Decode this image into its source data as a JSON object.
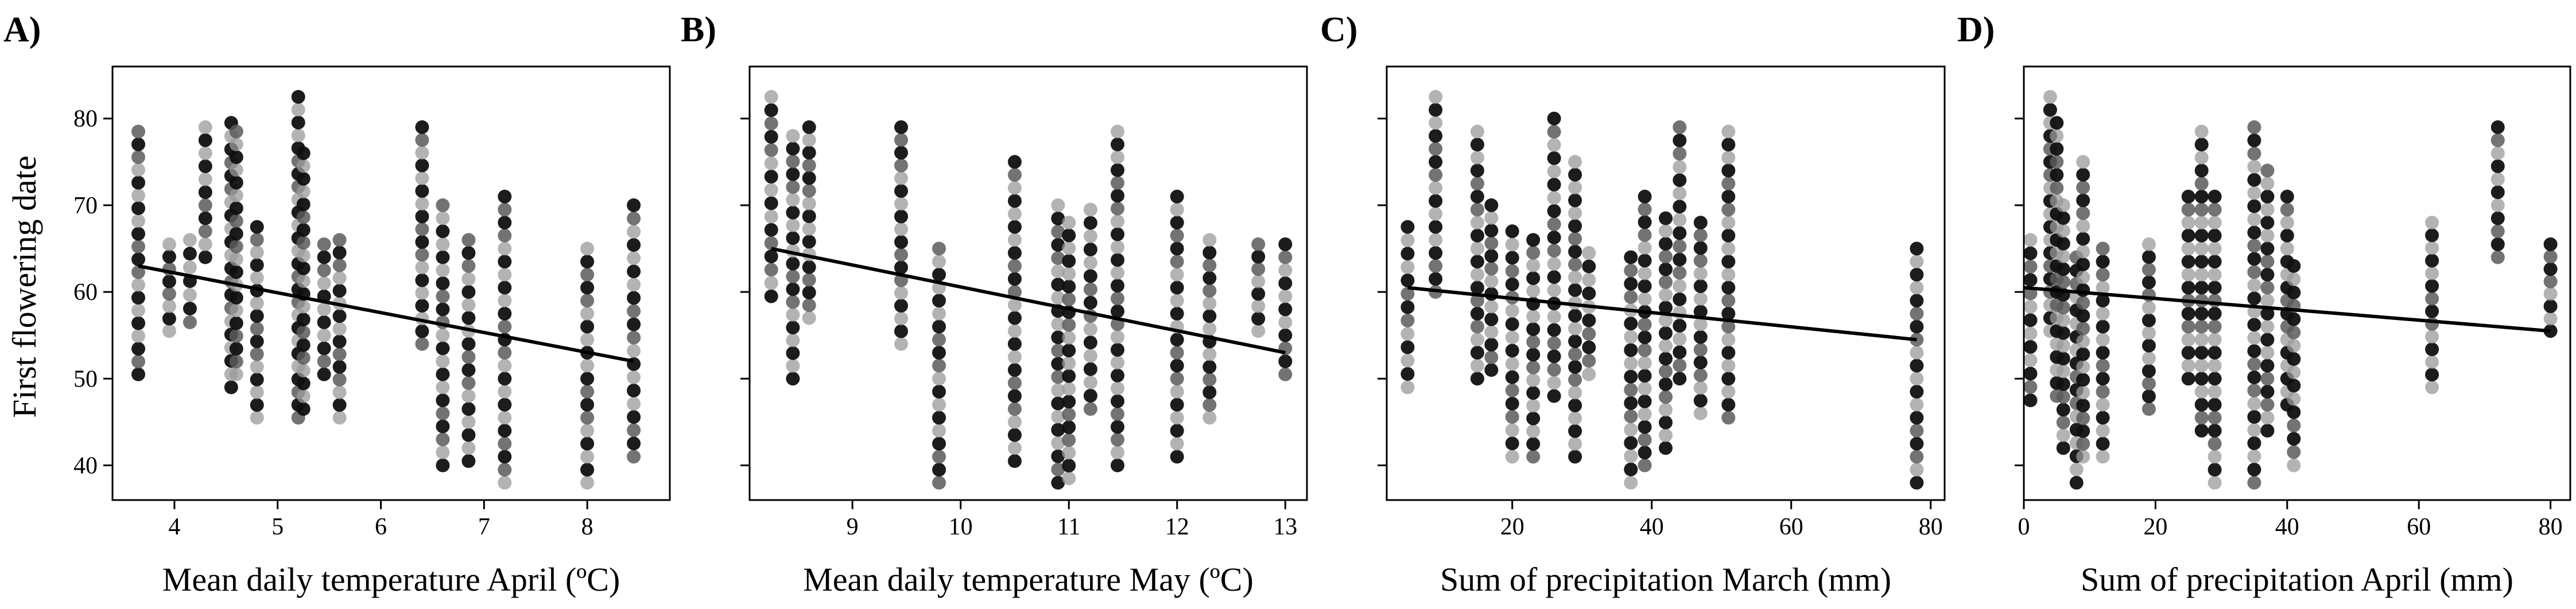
{
  "figure": {
    "ylabel": "First flowering date",
    "colors": {
      "ink": "#000000",
      "point_light": "#9a9a9a",
      "point_mid": "#5a5a5a",
      "point_dark": "#101010"
    }
  },
  "chart_data": [
    {
      "panel": "A)",
      "type": "scatter",
      "xlabel": "Mean daily temperature April (ºC)",
      "ylabel": "First flowering date",
      "xlim": [
        3.4,
        8.8
      ],
      "ylim": [
        36,
        86
      ],
      "xticks": [
        4,
        5,
        6,
        7,
        8
      ],
      "yticks": [
        40,
        50,
        60,
        70,
        80
      ],
      "trend": {
        "x": [
          3.65,
          8.45
        ],
        "y": [
          63.0,
          52.0
        ]
      },
      "columns": [
        {
          "x": 3.65,
          "min": 50.5,
          "max": 78.5
        },
        {
          "x": 3.95,
          "min": 55.5,
          "max": 65.5
        },
        {
          "x": 4.15,
          "min": 56.5,
          "max": 66.0
        },
        {
          "x": 4.3,
          "min": 64.0,
          "max": 79.0
        },
        {
          "x": 4.55,
          "min": 49.0,
          "max": 79.5
        },
        {
          "x": 4.6,
          "min": 50.5,
          "max": 78.5
        },
        {
          "x": 4.8,
          "min": 45.5,
          "max": 67.5
        },
        {
          "x": 5.2,
          "min": 45.5,
          "max": 82.5
        },
        {
          "x": 5.25,
          "min": 46.5,
          "max": 76.0
        },
        {
          "x": 5.45,
          "min": 50.5,
          "max": 65.5
        },
        {
          "x": 5.6,
          "min": 45.5,
          "max": 66.0
        },
        {
          "x": 6.4,
          "min": 54.0,
          "max": 79.0
        },
        {
          "x": 6.6,
          "min": 40.0,
          "max": 70.0
        },
        {
          "x": 6.85,
          "min": 40.5,
          "max": 66.0
        },
        {
          "x": 7.2,
          "min": 38.0,
          "max": 71.0
        },
        {
          "x": 8.0,
          "min": 38.0,
          "max": 65.0
        },
        {
          "x": 8.45,
          "min": 41.0,
          "max": 70.0
        }
      ]
    },
    {
      "panel": "B)",
      "type": "scatter",
      "xlabel": "Mean daily temperature May (ºC)",
      "ylabel": "First flowering date",
      "xlim": [
        8.05,
        13.2
      ],
      "ylim": [
        36,
        86
      ],
      "xticks": [
        9,
        10,
        11,
        12,
        13
      ],
      "yticks": [
        40,
        50,
        60,
        70,
        80
      ],
      "trend": {
        "x": [
          8.25,
          13.0
        ],
        "y": [
          65.0,
          53.0
        ]
      },
      "columns": [
        {
          "x": 8.25,
          "min": 59.5,
          "max": 82.5
        },
        {
          "x": 8.45,
          "min": 50.0,
          "max": 78.0
        },
        {
          "x": 8.6,
          "min": 57.0,
          "max": 79.0
        },
        {
          "x": 9.45,
          "min": 54.0,
          "max": 79.0
        },
        {
          "x": 9.8,
          "min": 38.0,
          "max": 65.0
        },
        {
          "x": 10.5,
          "min": 40.5,
          "max": 75.0
        },
        {
          "x": 10.9,
          "min": 38.0,
          "max": 70.0
        },
        {
          "x": 11.0,
          "min": 38.5,
          "max": 68.0
        },
        {
          "x": 11.2,
          "min": 46.5,
          "max": 69.5
        },
        {
          "x": 11.45,
          "min": 40.0,
          "max": 78.5
        },
        {
          "x": 12.0,
          "min": 41.0,
          "max": 71.0
        },
        {
          "x": 12.3,
          "min": 45.5,
          "max": 66.0
        },
        {
          "x": 12.75,
          "min": 55.5,
          "max": 65.5
        },
        {
          "x": 13.0,
          "min": 50.5,
          "max": 65.5
        }
      ]
    },
    {
      "panel": "C)",
      "type": "scatter",
      "xlabel": "Sum of precipitation March (mm)",
      "ylabel": "First flowering date",
      "xlim": [
        2,
        82
      ],
      "ylim": [
        36,
        86
      ],
      "xticks": [
        20,
        40,
        60,
        80
      ],
      "yticks": [
        40,
        50,
        60,
        70,
        80
      ],
      "trend": {
        "x": [
          5,
          78
        ],
        "y": [
          60.5,
          54.5
        ]
      },
      "columns": [
        {
          "x": 5,
          "min": 49.0,
          "max": 67.5
        },
        {
          "x": 9,
          "min": 60.0,
          "max": 82.5
        },
        {
          "x": 15,
          "min": 50.0,
          "max": 78.5
        },
        {
          "x": 17,
          "min": 51.0,
          "max": 70.0
        },
        {
          "x": 20,
          "min": 41.0,
          "max": 67.0
        },
        {
          "x": 23,
          "min": 41.0,
          "max": 66.0
        },
        {
          "x": 26,
          "min": 48.0,
          "max": 80.0
        },
        {
          "x": 29,
          "min": 41.0,
          "max": 75.0
        },
        {
          "x": 31,
          "min": 50.5,
          "max": 64.5
        },
        {
          "x": 37,
          "min": 38.0,
          "max": 64.0
        },
        {
          "x": 39,
          "min": 40.0,
          "max": 71.0
        },
        {
          "x": 42,
          "min": 42.0,
          "max": 68.5
        },
        {
          "x": 44,
          "min": 50.0,
          "max": 79.0
        },
        {
          "x": 47,
          "min": 46.0,
          "max": 68.0
        },
        {
          "x": 51,
          "min": 45.5,
          "max": 78.5
        },
        {
          "x": 78,
          "min": 38.0,
          "max": 65.0
        }
      ]
    },
    {
      "panel": "D)",
      "type": "scatter",
      "xlabel": "Sum of precipitation April (mm)",
      "ylabel": "First flowering date",
      "xlim": [
        0,
        83
      ],
      "ylim": [
        36,
        86
      ],
      "xticks": [
        0,
        20,
        40,
        60,
        80
      ],
      "yticks": [
        40,
        50,
        60,
        70,
        80
      ],
      "trend": {
        "x": [
          0,
          80
        ],
        "y": [
          60.5,
          55.5
        ]
      },
      "columns": [
        {
          "x": 1,
          "min": 47.5,
          "max": 66.0
        },
        {
          "x": 4,
          "min": 55.5,
          "max": 82.5
        },
        {
          "x": 5,
          "min": 48.0,
          "max": 79.5
        },
        {
          "x": 6,
          "min": 42.0,
          "max": 70.0
        },
        {
          "x": 8,
          "min": 38.0,
          "max": 64.0
        },
        {
          "x": 9,
          "min": 41.0,
          "max": 75.0
        },
        {
          "x": 12,
          "min": 41.0,
          "max": 65.0
        },
        {
          "x": 19,
          "min": 46.5,
          "max": 65.5
        },
        {
          "x": 25,
          "min": 50.0,
          "max": 71.0
        },
        {
          "x": 27,
          "min": 44.0,
          "max": 78.5
        },
        {
          "x": 29,
          "min": 38.0,
          "max": 71.0
        },
        {
          "x": 35,
          "min": 38.0,
          "max": 79.0
        },
        {
          "x": 37,
          "min": 44.0,
          "max": 74.0
        },
        {
          "x": 40,
          "min": 47.0,
          "max": 71.0
        },
        {
          "x": 41,
          "min": 40.0,
          "max": 63.0
        },
        {
          "x": 62,
          "min": 49.0,
          "max": 68.0
        },
        {
          "x": 72,
          "min": 64.0,
          "max": 79.0
        },
        {
          "x": 80,
          "min": 55.5,
          "max": 65.5
        }
      ]
    }
  ]
}
